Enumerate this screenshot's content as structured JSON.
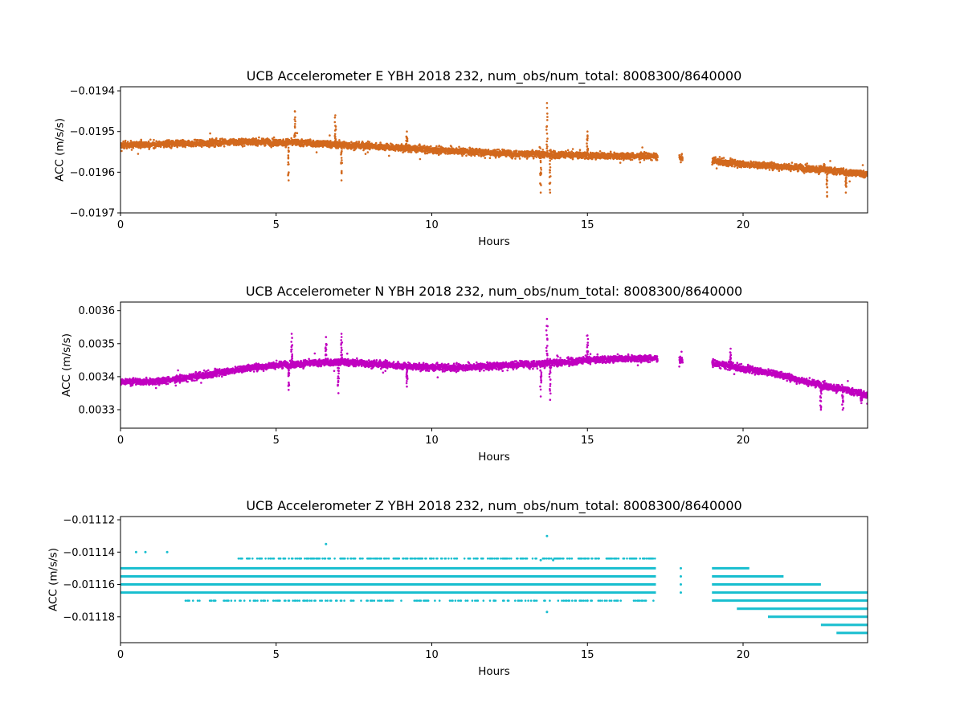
{
  "chart_data": [
    {
      "type": "scatter",
      "title": "UCB Accelerometer E YBH 2018 232, num_obs/num_total: 8008300/8640000",
      "xlabel": "Hours",
      "ylabel": "ACC (m/s/s)",
      "xlim": [
        0,
        24
      ],
      "ylim": [
        -0.0197,
        -0.01939
      ],
      "xticks": [
        0,
        5,
        10,
        15,
        20
      ],
      "xtick_labels": [
        "0",
        "5",
        "10",
        "15",
        "20"
      ],
      "yticks": [
        -0.0194,
        -0.0195,
        -0.0196,
        -0.0197
      ],
      "ytick_labels": [
        "−0.0194",
        "−0.0195",
        "−0.0196",
        "−0.0197"
      ],
      "color": "#d2691e",
      "grid": false,
      "trend": [
        [
          0,
          -0.019533
        ],
        [
          2,
          -0.01953
        ],
        [
          4,
          -0.019525
        ],
        [
          6,
          -0.019528
        ],
        [
          8,
          -0.019536
        ],
        [
          10,
          -0.019545
        ],
        [
          12,
          -0.019553
        ],
        [
          14,
          -0.019557
        ],
        [
          16,
          -0.01956
        ],
        [
          17.2,
          -0.019562
        ],
        [
          19,
          -0.019572
        ],
        [
          20,
          -0.01958
        ],
        [
          22,
          -0.01959
        ],
        [
          24,
          -0.019605
        ]
      ],
      "gaps": [
        [
          17.25,
          17.95
        ],
        [
          18.05,
          19.0
        ]
      ],
      "spikes": [
        [
          5.6,
          -0.01945
        ],
        [
          5.4,
          -0.01962
        ],
        [
          6.9,
          -0.01946
        ],
        [
          7.1,
          -0.01962
        ],
        [
          9.2,
          -0.0195
        ],
        [
          13.7,
          -0.01943
        ],
        [
          13.5,
          -0.01965
        ],
        [
          13.8,
          -0.01965
        ],
        [
          15.0,
          -0.0195
        ],
        [
          22.6,
          -0.01958
        ],
        [
          22.7,
          -0.01966
        ],
        [
          23.3,
          -0.01965
        ]
      ]
    },
    {
      "type": "scatter",
      "title": "UCB Accelerometer N YBH 2018 232, num_obs/num_total: 8008300/8640000",
      "xlabel": "Hours",
      "ylabel": "ACC (m/s/s)",
      "xlim": [
        0,
        24
      ],
      "ylim": [
        0.003244,
        0.003626
      ],
      "xticks": [
        0,
        5,
        10,
        15,
        20
      ],
      "xtick_labels": [
        "0",
        "5",
        "10",
        "15",
        "20"
      ],
      "yticks": [
        0.0036,
        0.0035,
        0.0034,
        0.0033
      ],
      "ytick_labels": [
        "0.0036",
        "0.0035",
        "0.0034",
        "0.0033"
      ],
      "color": "#c000c0",
      "grid": false,
      "trend": [
        [
          0,
          0.003385
        ],
        [
          1,
          0.003385
        ],
        [
          2,
          0.003393
        ],
        [
          3,
          0.00341
        ],
        [
          4,
          0.003425
        ],
        [
          5,
          0.003435
        ],
        [
          6,
          0.00344
        ],
        [
          7,
          0.003445
        ],
        [
          8,
          0.00344
        ],
        [
          9,
          0.003432
        ],
        [
          10,
          0.003428
        ],
        [
          11,
          0.003428
        ],
        [
          12,
          0.003432
        ],
        [
          13,
          0.003438
        ],
        [
          14,
          0.003442
        ],
        [
          15,
          0.00345
        ],
        [
          16,
          0.003455
        ],
        [
          17.2,
          0.003455
        ],
        [
          19,
          0.00344
        ],
        [
          20,
          0.003425
        ],
        [
          21,
          0.00341
        ],
        [
          22,
          0.003385
        ],
        [
          23,
          0.003365
        ],
        [
          24,
          0.003345
        ]
      ],
      "gaps": [
        [
          17.25,
          17.95
        ],
        [
          18.05,
          19.0
        ]
      ],
      "spikes": [
        [
          5.5,
          0.00353
        ],
        [
          5.4,
          0.00336
        ],
        [
          6.6,
          0.00352
        ],
        [
          7.1,
          0.00353
        ],
        [
          7.0,
          0.00335
        ],
        [
          9.2,
          0.00337
        ],
        [
          13.7,
          0.003575
        ],
        [
          13.5,
          0.00334
        ],
        [
          13.8,
          0.00333
        ],
        [
          15.0,
          0.003525
        ],
        [
          19.6,
          0.003485
        ],
        [
          22.5,
          0.0033
        ],
        [
          23.2,
          0.0033
        ],
        [
          23.8,
          0.00332
        ]
      ]
    },
    {
      "type": "scatter",
      "title": "UCB Accelerometer Z YBH 2018 232, num_obs/num_total: 8008300/8640000",
      "xlabel": "Hours",
      "ylabel": "ACC (m/s/s)",
      "xlim": [
        0,
        24
      ],
      "ylim": [
        -0.011196,
        -0.011118
      ],
      "xticks": [
        0,
        5,
        10,
        15,
        20
      ],
      "xtick_labels": [
        "0",
        "5",
        "10",
        "15",
        "20"
      ],
      "yticks": [
        -0.01112,
        -0.01114,
        -0.01116,
        -0.01118
      ],
      "ytick_labels": [
        "−0.01112",
        "−0.01114",
        "−0.01116",
        "−0.01118"
      ],
      "color": "#17becf",
      "grid": false,
      "levels": [
        {
          "y": -0.011144,
          "x_ranges": [
            [
              3.7,
              17.2
            ]
          ],
          "dense": false
        },
        {
          "y": -0.01115,
          "x_ranges": [
            [
              0,
              17.2
            ],
            [
              19.0,
              20.2
            ]
          ],
          "dense": true
        },
        {
          "y": -0.011155,
          "x_ranges": [
            [
              0,
              17.2
            ],
            [
              19.0,
              21.3
            ]
          ],
          "dense": true
        },
        {
          "y": -0.01116,
          "x_ranges": [
            [
              0,
              17.2
            ],
            [
              19.0,
              22.5
            ]
          ],
          "dense": true
        },
        {
          "y": -0.011165,
          "x_ranges": [
            [
              0,
              17.2
            ],
            [
              19.0,
              24.0
            ]
          ],
          "dense": true
        },
        {
          "y": -0.01117,
          "x_ranges": [
            [
              19.0,
              24.0
            ]
          ],
          "dense": true
        },
        {
          "y": -0.011175,
          "x_ranges": [
            [
              19.8,
              24.0
            ]
          ],
          "dense": true
        },
        {
          "y": -0.01118,
          "x_ranges": [
            [
              20.8,
              24.0
            ]
          ],
          "dense": true
        },
        {
          "y": -0.011185,
          "x_ranges": [
            [
              22.5,
              24.0
            ]
          ],
          "dense": true
        },
        {
          "y": -0.01119,
          "x_ranges": [
            [
              23.0,
              24.0
            ]
          ],
          "dense": true
        }
      ],
      "gaps": [
        [
          17.25,
          17.95
        ],
        [
          18.05,
          19.0
        ]
      ],
      "sparse": [
        [
          0.5,
          -0.01114
        ],
        [
          0.8,
          -0.01114
        ],
        [
          1.5,
          -0.01114
        ],
        [
          6.6,
          -0.011135
        ],
        [
          13.7,
          -0.01113
        ],
        [
          13.7,
          -0.011177
        ],
        [
          13.5,
          -0.011145
        ],
        [
          13.9,
          -0.011145
        ],
        [
          3.0,
          -0.01117
        ],
        [
          6.0,
          -0.01117
        ],
        [
          12.0,
          -0.01117
        ],
        [
          15.0,
          -0.01117
        ]
      ]
    }
  ]
}
